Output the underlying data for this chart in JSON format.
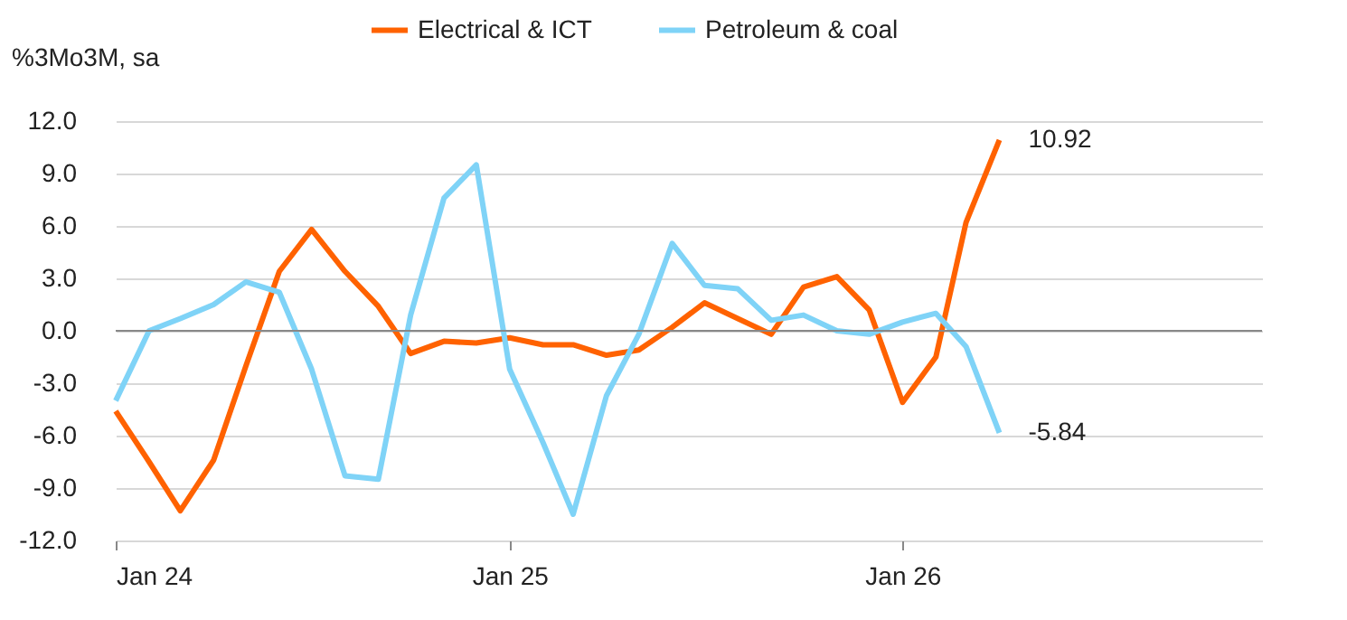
{
  "chart_data": {
    "type": "line",
    "ylabel": "%3Mo3M, sa",
    "x": [
      "2024-01",
      "2024-02",
      "2024-03",
      "2024-04",
      "2024-05",
      "2024-06",
      "2024-07",
      "2024-08",
      "2024-09",
      "2024-10",
      "2024-11",
      "2024-12",
      "2025-01",
      "2025-02",
      "2025-03",
      "2025-04",
      "2025-05",
      "2025-06",
      "2025-07",
      "2025-08",
      "2025-09",
      "2025-10",
      "2025-11",
      "2025-12",
      "2026-01",
      "2026-02",
      "2026-03",
      "2026-04"
    ],
    "series": [
      {
        "name": "Electrical & ICT",
        "color": "#ff6200",
        "values": [
          -4.6,
          -7.5,
          -10.3,
          -7.4,
          -2.0,
          3.4,
          5.8,
          3.4,
          1.4,
          -1.3,
          -0.6,
          -0.7,
          -0.4,
          -0.8,
          -0.8,
          -1.4,
          -1.1,
          0.2,
          1.6,
          0.7,
          -0.2,
          2.5,
          3.1,
          1.2,
          -4.1,
          -1.5,
          6.2,
          10.92
        ]
      },
      {
        "name": "Petroleum & coal",
        "color": "#7fd3f7",
        "values": [
          -4.0,
          0.0,
          0.7,
          1.5,
          2.8,
          2.2,
          -2.2,
          -8.3,
          -8.5,
          0.9,
          7.6,
          9.5,
          -2.2,
          -6.4,
          -10.5,
          -3.7,
          -0.2,
          5.0,
          2.6,
          2.4,
          0.6,
          0.9,
          0.0,
          -0.2,
          0.5,
          1.0,
          -0.9,
          -5.84
        ]
      }
    ],
    "xlim": [
      "2024-01",
      "2026-12"
    ],
    "xticks": [
      {
        "value": "2024-01",
        "label": "Jan 24"
      },
      {
        "value": "2025-01",
        "label": "Jan 25"
      },
      {
        "value": "2026-01",
        "label": "Jan 26"
      }
    ],
    "ylim": [
      -12,
      12
    ],
    "yticks": [
      {
        "value": 12,
        "label": "12.0"
      },
      {
        "value": 9,
        "label": "9.0"
      },
      {
        "value": 6,
        "label": "6.0"
      },
      {
        "value": 3,
        "label": "3.0"
      },
      {
        "value": 0,
        "label": "0.0"
      },
      {
        "value": -3,
        "label": "-3.0"
      },
      {
        "value": -6,
        "label": "-6.0"
      },
      {
        "value": -9,
        "label": "-9.0"
      },
      {
        "value": -12,
        "label": "-12.0"
      }
    ],
    "grid": "y",
    "legend": "top",
    "marker": "none",
    "line_style": "solid",
    "annotations": [
      {
        "text": "10.92",
        "x": "2026-04",
        "y": 10.92
      },
      {
        "text": "-5.84",
        "x": "2026-04",
        "y": -5.84
      }
    ]
  }
}
